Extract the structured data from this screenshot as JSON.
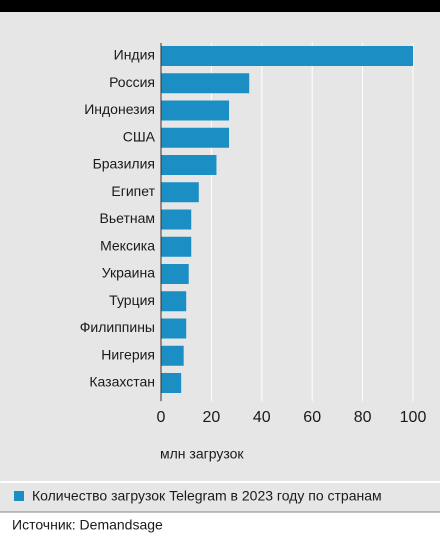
{
  "chart_data": {
    "type": "barh",
    "categories": [
      "Индия",
      "Россия",
      "Индонезия",
      "США",
      "Бразилия",
      "Египет",
      "Вьетнам",
      "Мексика",
      "Украина",
      "Турция",
      "Филиппины",
      "Нигерия",
      "Казахстан"
    ],
    "series": [
      {
        "name": "Количество загрузок Telegram в 2023 году по странам",
        "color": "#1b8ec4",
        "values": [
          100,
          35,
          27,
          27,
          22,
          15,
          12,
          12,
          11,
          10,
          10,
          9,
          8
        ]
      }
    ],
    "xlim": [
      0,
      100
    ],
    "xticks": [
      0,
      20,
      40,
      60,
      80,
      100
    ],
    "grid": true,
    "x_label": "млн загрузок",
    "source": "Источник: Demandsage"
  }
}
